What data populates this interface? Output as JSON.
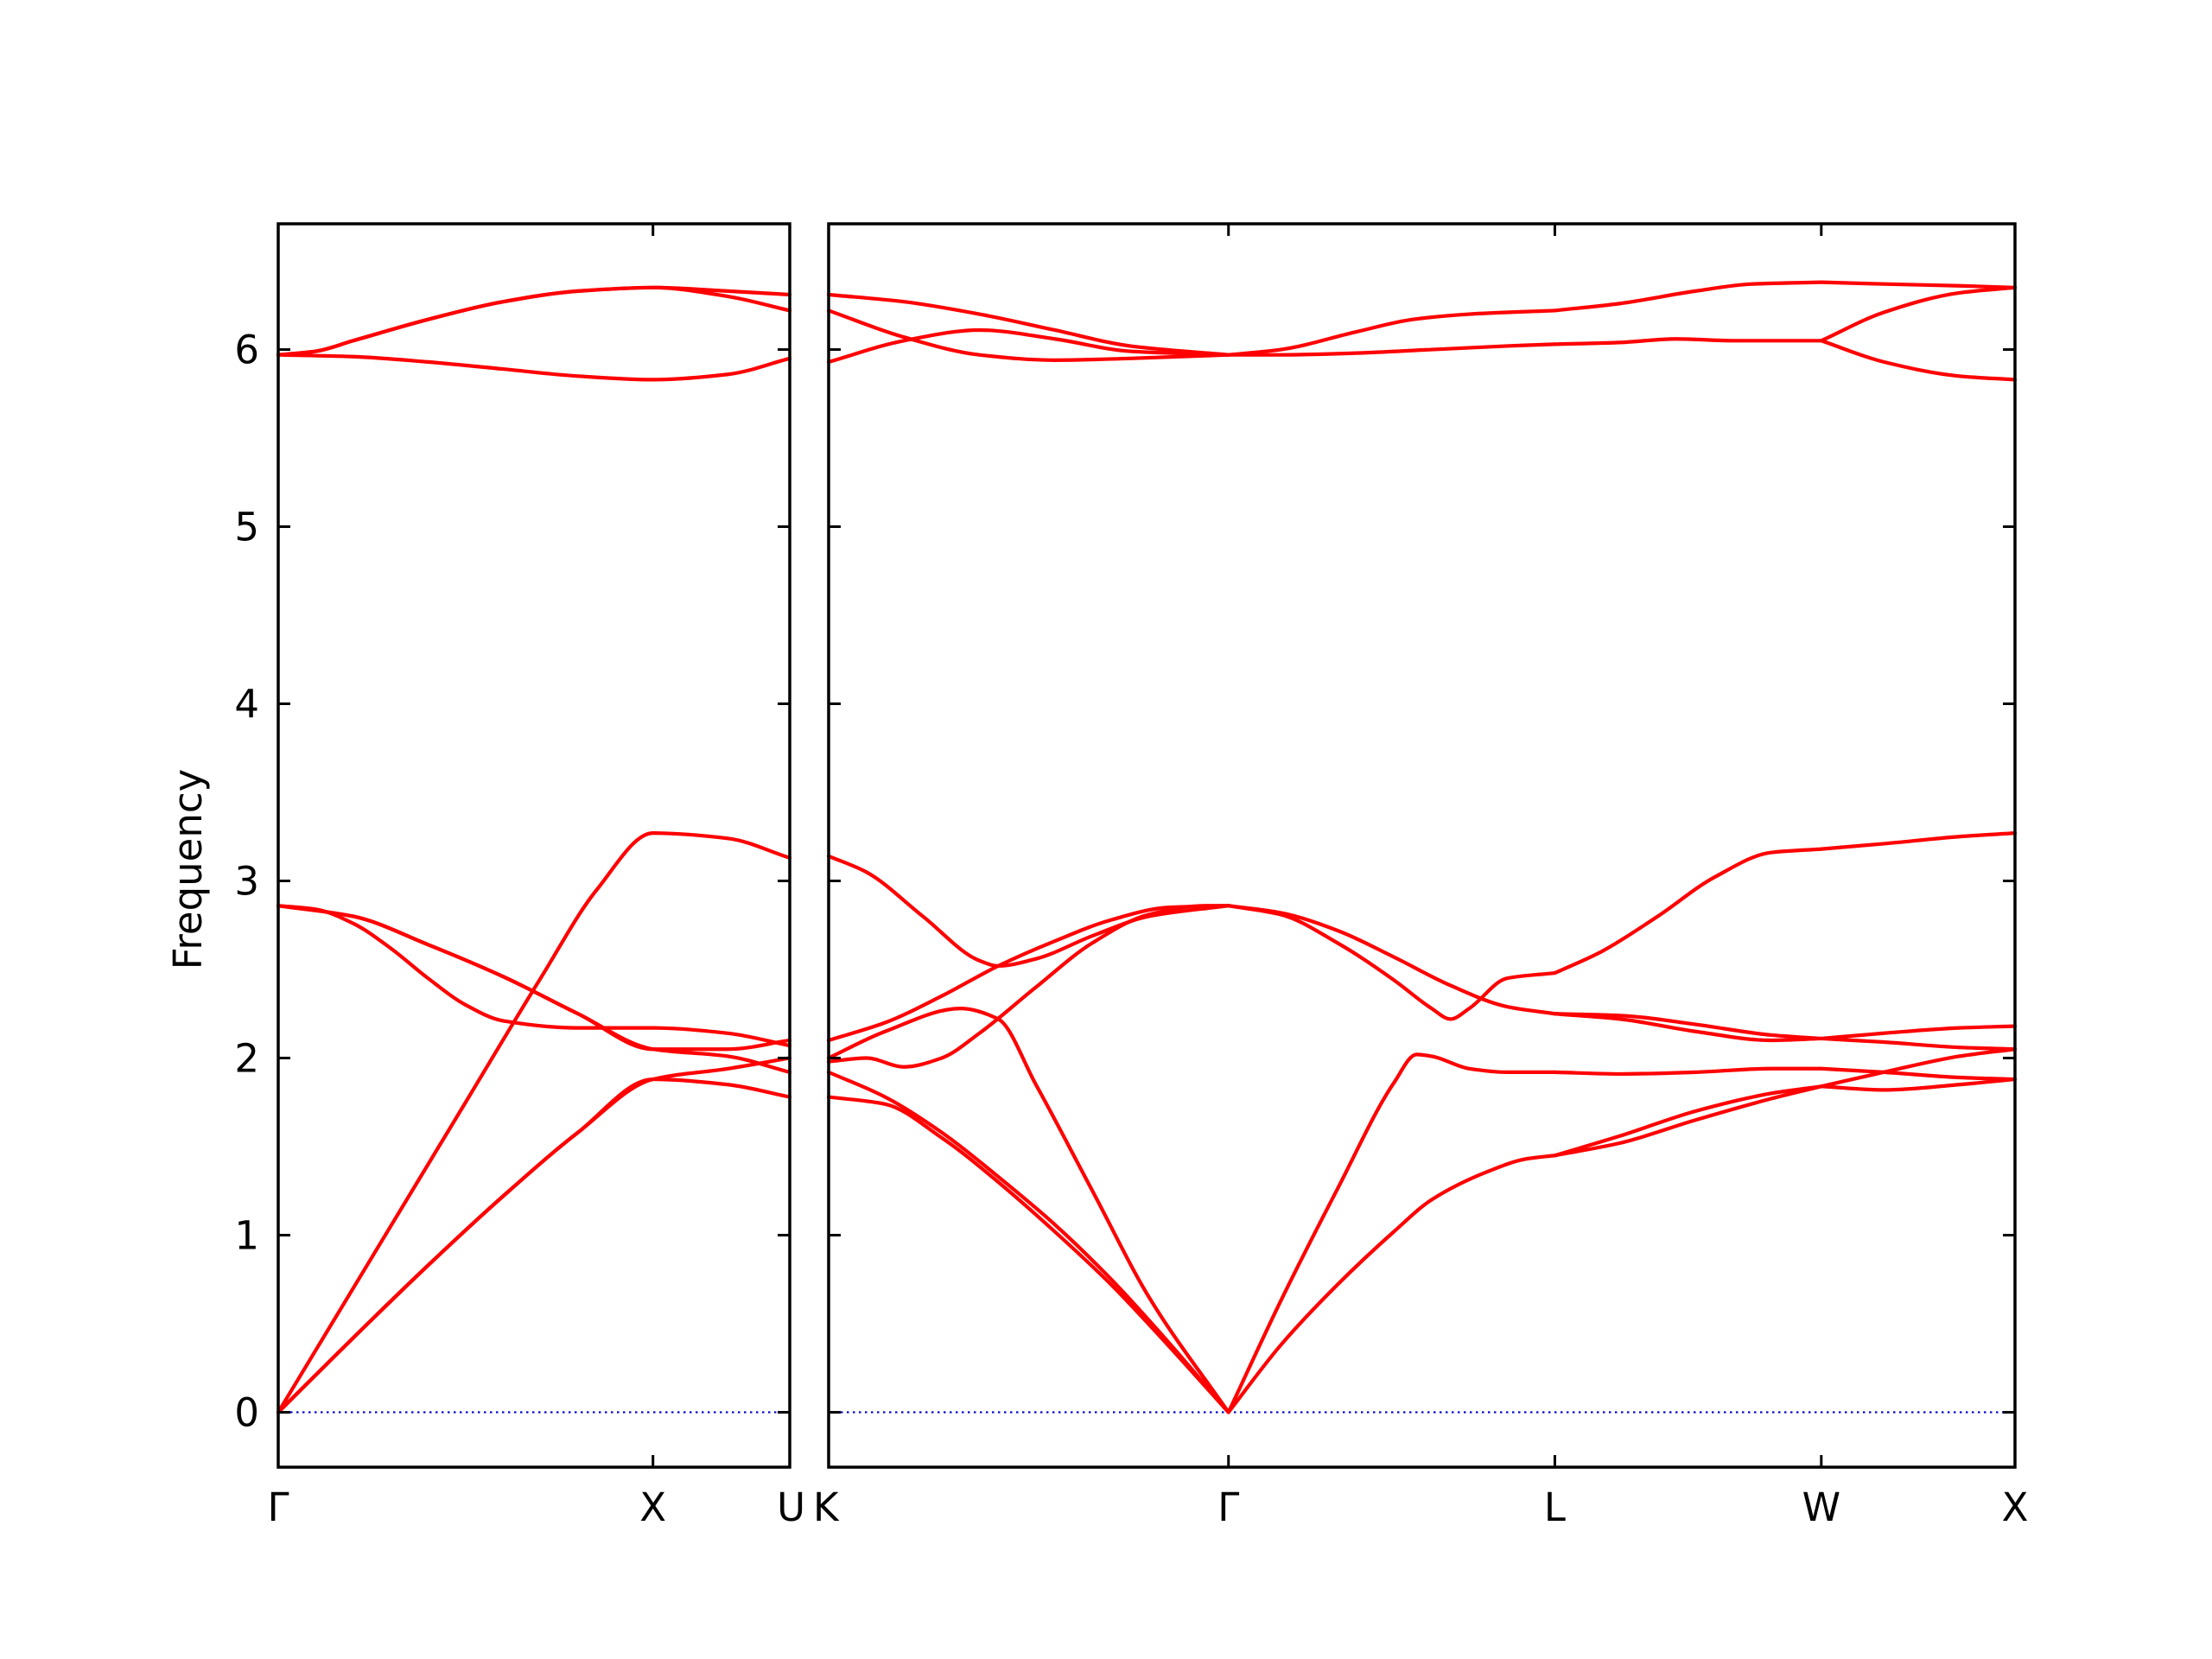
{
  "chart_data": {
    "type": "line",
    "ylabel": "Frequency",
    "ylim": [
      -0.31,
      6.71
    ],
    "y_ticks": [
      "0",
      "1",
      "2",
      "3",
      "4",
      "5",
      "6"
    ],
    "grid": false,
    "legend": "none",
    "band_color": "#ff0000",
    "zero_line_color": "#0000cc",
    "panels": [
      {
        "xlim": [
          0,
          1.365
        ],
        "x_tick_positions": [
          0,
          1.0,
          1.365
        ],
        "x_tick_labels": [
          "Γ",
          "X",
          "U"
        ],
        "series": [
          {
            "x": [
              0,
              0.1,
              0.3,
              0.5,
              0.7,
              0.85,
              1.0,
              1.2,
              1.365
            ],
            "y": [
              0,
              0.35,
              1.05,
              1.75,
              2.45,
              2.95,
              3.27,
              3.24,
              3.13
            ]
          },
          {
            "x": [
              0,
              0.2,
              0.4,
              0.6,
              0.8,
              1.0,
              1.2,
              1.365
            ],
            "y": [
              0,
              0.42,
              0.83,
              1.22,
              1.58,
              1.88,
              1.85,
              1.78
            ]
          },
          {
            "x": [
              0,
              0.2,
              0.4,
              0.6,
              0.8,
              1.0,
              1.2,
              1.365
            ],
            "y": [
              0,
              0.42,
              0.83,
              1.22,
              1.58,
              1.88,
              1.94,
              2.0
            ]
          },
          {
            "x": [
              0,
              0.1,
              0.2,
              0.3,
              0.4,
              0.5,
              0.6,
              0.8,
              1.0,
              1.2,
              1.365
            ],
            "y": [
              2.86,
              2.84,
              2.76,
              2.62,
              2.45,
              2.3,
              2.21,
              2.17,
              2.17,
              2.14,
              2.07
            ]
          },
          {
            "x": [
              0,
              0.2,
              0.4,
              0.6,
              0.8,
              1.0,
              1.2,
              1.365
            ],
            "y": [
              2.86,
              2.8,
              2.64,
              2.46,
              2.25,
              2.05,
              2.01,
              1.92
            ]
          },
          {
            "x": [
              0,
              0.2,
              0.4,
              0.6,
              0.8,
              1.0,
              1.2,
              1.365
            ],
            "y": [
              2.86,
              2.8,
              2.64,
              2.46,
              2.25,
              2.05,
              2.05,
              2.1
            ]
          },
          {
            "x": [
              0,
              0.2,
              0.4,
              0.6,
              0.8,
              1.0,
              1.2,
              1.365
            ],
            "y": [
              5.97,
              5.96,
              5.93,
              5.89,
              5.85,
              5.83,
              5.86,
              5.95
            ]
          },
          {
            "x": [
              0,
              0.1,
              0.2,
              0.4,
              0.6,
              0.8,
              1.0,
              1.2,
              1.365
            ],
            "y": [
              5.97,
              5.99,
              6.05,
              6.17,
              6.27,
              6.33,
              6.35,
              6.33,
              6.31
            ]
          },
          {
            "x": [
              0,
              0.1,
              0.2,
              0.4,
              0.6,
              0.8,
              1.0,
              1.2,
              1.365
            ],
            "y": [
              5.97,
              5.99,
              6.05,
              6.17,
              6.27,
              6.33,
              6.35,
              6.3,
              6.22
            ]
          }
        ]
      },
      {
        "xlim": [
          0,
          3.148
        ],
        "x_tick_positions": [
          0,
          1.061,
          1.927,
          2.634,
          3.148
        ],
        "x_tick_labels": [
          "K",
          "Γ",
          "L",
          "W",
          "X"
        ],
        "series": [
          {
            "x": [
              0,
              0.15,
              0.3,
              0.45,
              0.6,
              0.75,
              0.9,
              1.061
            ],
            "y": [
              1.92,
              1.78,
              1.58,
              1.33,
              1.06,
              0.75,
              0.4,
              0
            ]
          },
          {
            "x": [
              0,
              0.15,
              0.3,
              0.45,
              0.6,
              0.75,
              0.9,
              1.061
            ],
            "y": [
              1.78,
              1.74,
              1.55,
              1.3,
              1.02,
              0.72,
              0.38,
              0
            ]
          },
          {
            "x": [
              0,
              0.15,
              0.35,
              0.45,
              0.55,
              0.7,
              0.85,
              1.061
            ],
            "y": [
              2.0,
              2.15,
              2.28,
              2.22,
              1.85,
              1.25,
              0.65,
              0
            ]
          },
          {
            "x": [
              0,
              0.1,
              0.2,
              0.3,
              0.4,
              0.55,
              0.7,
              0.85,
              1.0,
              1.061
            ],
            "y": [
              1.98,
              2.0,
              1.95,
              2.0,
              2.14,
              2.4,
              2.65,
              2.81,
              2.86,
              2.86
            ]
          },
          {
            "x": [
              0,
              0.15,
              0.3,
              0.45,
              0.6,
              0.75,
              0.9,
              1.061
            ],
            "y": [
              2.1,
              2.2,
              2.35,
              2.52,
              2.66,
              2.78,
              2.85,
              2.86
            ]
          },
          {
            "x": [
              0,
              0.1,
              0.25,
              0.4,
              0.45,
              0.55,
              0.7,
              0.85,
              1.061
            ],
            "y": [
              3.14,
              3.05,
              2.8,
              2.55,
              2.52,
              2.56,
              2.69,
              2.8,
              2.86
            ]
          },
          {
            "x": [
              0,
              0.2,
              0.4,
              0.6,
              0.8,
              1.061
            ],
            "y": [
              5.93,
              6.05,
              6.11,
              6.06,
              5.99,
              5.97
            ]
          },
          {
            "x": [
              0,
              0.2,
              0.4,
              0.6,
              0.8,
              1.061
            ],
            "y": [
              6.22,
              6.07,
              5.97,
              5.94,
              5.95,
              5.97
            ]
          },
          {
            "x": [
              0,
              0.2,
              0.4,
              0.6,
              0.8,
              1.061
            ],
            "y": [
              6.31,
              6.27,
              6.2,
              6.11,
              6.02,
              5.97
            ]
          },
          {
            "x": [
              1.061,
              1.2,
              1.35,
              1.5,
              1.6,
              1.75,
              1.85,
              1.927
            ],
            "y": [
              0,
              0.38,
              0.72,
              1.02,
              1.2,
              1.36,
              1.43,
              1.45
            ]
          },
          {
            "x": [
              1.061,
              1.2,
              1.35,
              1.5,
              1.56,
              1.6,
              1.7,
              1.8,
              1.927
            ],
            "y": [
              0,
              0.63,
              1.26,
              1.86,
              2.02,
              2.01,
              1.94,
              1.92,
              1.92
            ]
          },
          {
            "x": [
              1.061,
              1.2,
              1.35,
              1.5,
              1.6,
              1.65,
              1.7,
              1.8,
              1.927
            ],
            "y": [
              2.86,
              2.81,
              2.65,
              2.44,
              2.28,
              2.22,
              2.28,
              2.45,
              2.48
            ]
          },
          {
            "x": [
              1.061,
              1.2,
              1.35,
              1.5,
              1.65,
              1.8,
              1.927
            ],
            "y": [
              2.86,
              2.82,
              2.72,
              2.57,
              2.41,
              2.29,
              2.25
            ]
          },
          {
            "x": [
              1.061,
              1.2,
              1.4,
              1.6,
              1.8,
              1.927
            ],
            "y": [
              5.97,
              5.97,
              5.98,
              6.0,
              6.02,
              6.03
            ]
          },
          {
            "x": [
              1.061,
              1.2,
              1.4,
              1.55,
              1.7,
              1.8,
              1.927
            ],
            "y": [
              5.97,
              6.0,
              6.1,
              6.17,
              6.2,
              6.21,
              6.22
            ]
          },
          {
            "x": [
              1.927,
              2.1,
              2.3,
              2.5,
              2.634
            ],
            "y": [
              1.45,
              1.52,
              1.65,
              1.77,
              1.84
            ]
          },
          {
            "x": [
              1.927,
              2.1,
              2.3,
              2.5,
              2.634
            ],
            "y": [
              1.45,
              1.56,
              1.7,
              1.8,
              1.84
            ]
          },
          {
            "x": [
              1.927,
              2.1,
              2.3,
              2.5,
              2.634
            ],
            "y": [
              1.92,
              1.91,
              1.92,
              1.94,
              1.94
            ]
          },
          {
            "x": [
              1.927,
              2.1,
              2.3,
              2.5,
              2.634
            ],
            "y": [
              2.25,
              2.24,
              2.19,
              2.13,
              2.11
            ]
          },
          {
            "x": [
              1.927,
              2.1,
              2.3,
              2.5,
              2.634
            ],
            "y": [
              2.25,
              2.22,
              2.15,
              2.1,
              2.11
            ]
          },
          {
            "x": [
              1.927,
              2.05,
              2.2,
              2.35,
              2.5,
              2.634
            ],
            "y": [
              2.48,
              2.6,
              2.8,
              3.02,
              3.16,
              3.18
            ]
          },
          {
            "x": [
              1.927,
              2.1,
              2.25,
              2.4,
              2.634
            ],
            "y": [
              6.03,
              6.04,
              6.06,
              6.05,
              6.05
            ]
          },
          {
            "x": [
              1.927,
              2.1,
              2.3,
              2.45,
              2.634
            ],
            "y": [
              6.22,
              6.26,
              6.33,
              6.37,
              6.38
            ]
          },
          {
            "x": [
              2.634,
              2.8,
              3.0,
              3.148
            ],
            "y": [
              1.84,
              1.82,
              1.85,
              1.88
            ]
          },
          {
            "x": [
              2.634,
              2.8,
              3.0,
              3.148
            ],
            "y": [
              1.84,
              1.92,
              2.01,
              2.05
            ]
          },
          {
            "x": [
              2.634,
              2.8,
              3.0,
              3.148
            ],
            "y": [
              1.94,
              1.92,
              1.89,
              1.88
            ]
          },
          {
            "x": [
              2.634,
              2.8,
              3.0,
              3.148
            ],
            "y": [
              2.11,
              2.09,
              2.06,
              2.05
            ]
          },
          {
            "x": [
              2.634,
              2.8,
              3.0,
              3.148
            ],
            "y": [
              2.11,
              2.14,
              2.17,
              2.18
            ]
          },
          {
            "x": [
              2.634,
              2.8,
              3.0,
              3.148
            ],
            "y": [
              3.18,
              3.21,
              3.25,
              3.27
            ]
          },
          {
            "x": [
              2.634,
              2.8,
              3.0,
              3.148
            ],
            "y": [
              6.05,
              5.93,
              5.85,
              5.83
            ]
          },
          {
            "x": [
              2.634,
              2.8,
              3.0,
              3.148
            ],
            "y": [
              6.05,
              6.21,
              6.32,
              6.35
            ]
          },
          {
            "x": [
              2.634,
              2.8,
              3.0,
              3.148
            ],
            "y": [
              6.38,
              6.37,
              6.36,
              6.35
            ]
          }
        ]
      }
    ]
  }
}
